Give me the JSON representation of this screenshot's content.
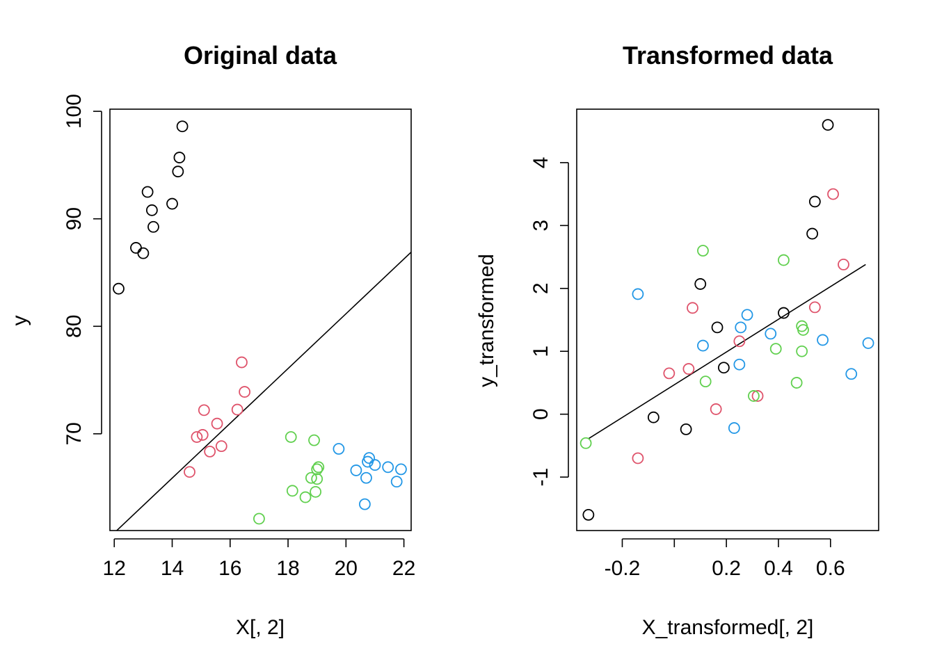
{
  "colors": {
    "group1": "#000000",
    "group2": "#DF536B",
    "group3": "#61D04F",
    "group4": "#2297E6",
    "fit_line": "#000000"
  },
  "chart_data": [
    {
      "type": "scatter",
      "title": "Original data",
      "xlabel": "X[, 2]",
      "ylabel": "y",
      "xlim": [
        11.85,
        22.25
      ],
      "ylim": [
        61.0,
        100.2
      ],
      "xticks": [
        12,
        14,
        16,
        18,
        20,
        22
      ],
      "xtick_labels": [
        "12",
        "14",
        "16",
        "18",
        "20",
        "22"
      ],
      "yticks": [
        70,
        80,
        90,
        100
      ],
      "ytick_labels": [
        "70",
        "80",
        "90",
        "100"
      ],
      "grid": false,
      "legend": "none",
      "series": [
        {
          "color": "#000000",
          "x": [
            12.15,
            12.75,
            13.0,
            13.15,
            13.3,
            13.35,
            14.0,
            14.2,
            14.25,
            14.35
          ],
          "y": [
            83.5,
            87.3,
            86.8,
            92.5,
            90.8,
            89.25,
            91.4,
            94.4,
            95.7,
            98.6
          ]
        },
        {
          "color": "#DF536B",
          "x": [
            14.6,
            14.85,
            15.05,
            15.1,
            15.3,
            15.55,
            15.7,
            16.25,
            16.4,
            16.5
          ],
          "y": [
            66.45,
            69.7,
            69.9,
            72.2,
            68.35,
            70.95,
            68.85,
            72.25,
            76.65,
            73.9
          ]
        },
        {
          "color": "#61D04F",
          "x": [
            17.0,
            18.1,
            18.15,
            18.6,
            18.8,
            18.9,
            18.95,
            19.0,
            19.0,
            19.05
          ],
          "y": [
            62.1,
            69.7,
            64.7,
            64.1,
            65.9,
            69.4,
            64.6,
            65.8,
            66.7,
            66.9
          ]
        },
        {
          "color": "#2297E6",
          "x": [
            19.75,
            20.35,
            20.65,
            20.7,
            20.75,
            20.8,
            21.0,
            21.45,
            21.75,
            21.9
          ],
          "y": [
            68.6,
            66.6,
            63.45,
            65.9,
            67.4,
            67.75,
            67.1,
            66.9,
            65.55,
            66.7
          ]
        }
      ],
      "fit_line": {
        "x": [
          11.85,
          22.25
        ],
        "y": [
          60.4,
          86.9
        ]
      }
    },
    {
      "type": "scatter",
      "title": "Transformed data",
      "xlabel": "X_transformed[, 2]",
      "ylabel": "y_transformed",
      "xlim": [
        -0.375,
        0.785
      ],
      "ylim": [
        -1.85,
        4.85
      ],
      "xticks": [
        -0.2,
        0.0,
        0.2,
        0.4,
        0.6
      ],
      "xtick_labels": [
        "-0.2",
        "",
        "0.2",
        "0.4",
        "0.6"
      ],
      "yticks": [
        -1,
        0,
        1,
        2,
        3,
        4
      ],
      "ytick_labels": [
        "-1",
        "0",
        "1",
        "2",
        "3",
        "4"
      ],
      "grid": false,
      "legend": "none",
      "series": [
        {
          "color": "#000000",
          "x": [
            -0.33,
            -0.08,
            0.045,
            0.1,
            0.165,
            0.19,
            0.42,
            0.53,
            0.54,
            0.59
          ],
          "y": [
            -1.6,
            -0.05,
            -0.24,
            2.07,
            1.38,
            0.74,
            1.61,
            2.87,
            3.38,
            4.6
          ]
        },
        {
          "color": "#DF536B",
          "x": [
            -0.14,
            -0.02,
            0.055,
            0.07,
            0.16,
            0.25,
            0.32,
            0.54,
            0.61,
            0.65
          ],
          "y": [
            -0.7,
            0.65,
            0.72,
            1.69,
            0.08,
            1.16,
            0.29,
            1.7,
            3.5,
            2.38
          ]
        },
        {
          "color": "#61D04F",
          "x": [
            -0.34,
            0.11,
            0.12,
            0.305,
            0.39,
            0.42,
            0.47,
            0.49,
            0.49,
            0.495
          ],
          "y": [
            -0.46,
            2.6,
            0.52,
            0.29,
            1.04,
            2.45,
            0.5,
            1.4,
            1.0,
            1.34
          ]
        },
        {
          "color": "#2297E6",
          "x": [
            -0.14,
            0.11,
            0.23,
            0.25,
            0.255,
            0.28,
            0.37,
            0.57,
            0.68,
            0.745
          ],
          "y": [
            1.91,
            1.09,
            -0.22,
            0.79,
            1.38,
            1.58,
            1.28,
            1.18,
            0.64,
            1.13
          ]
        }
      ],
      "fit_line": {
        "x": [
          -0.33,
          0.735
        ],
        "y": [
          -0.39,
          2.38
        ]
      }
    }
  ]
}
